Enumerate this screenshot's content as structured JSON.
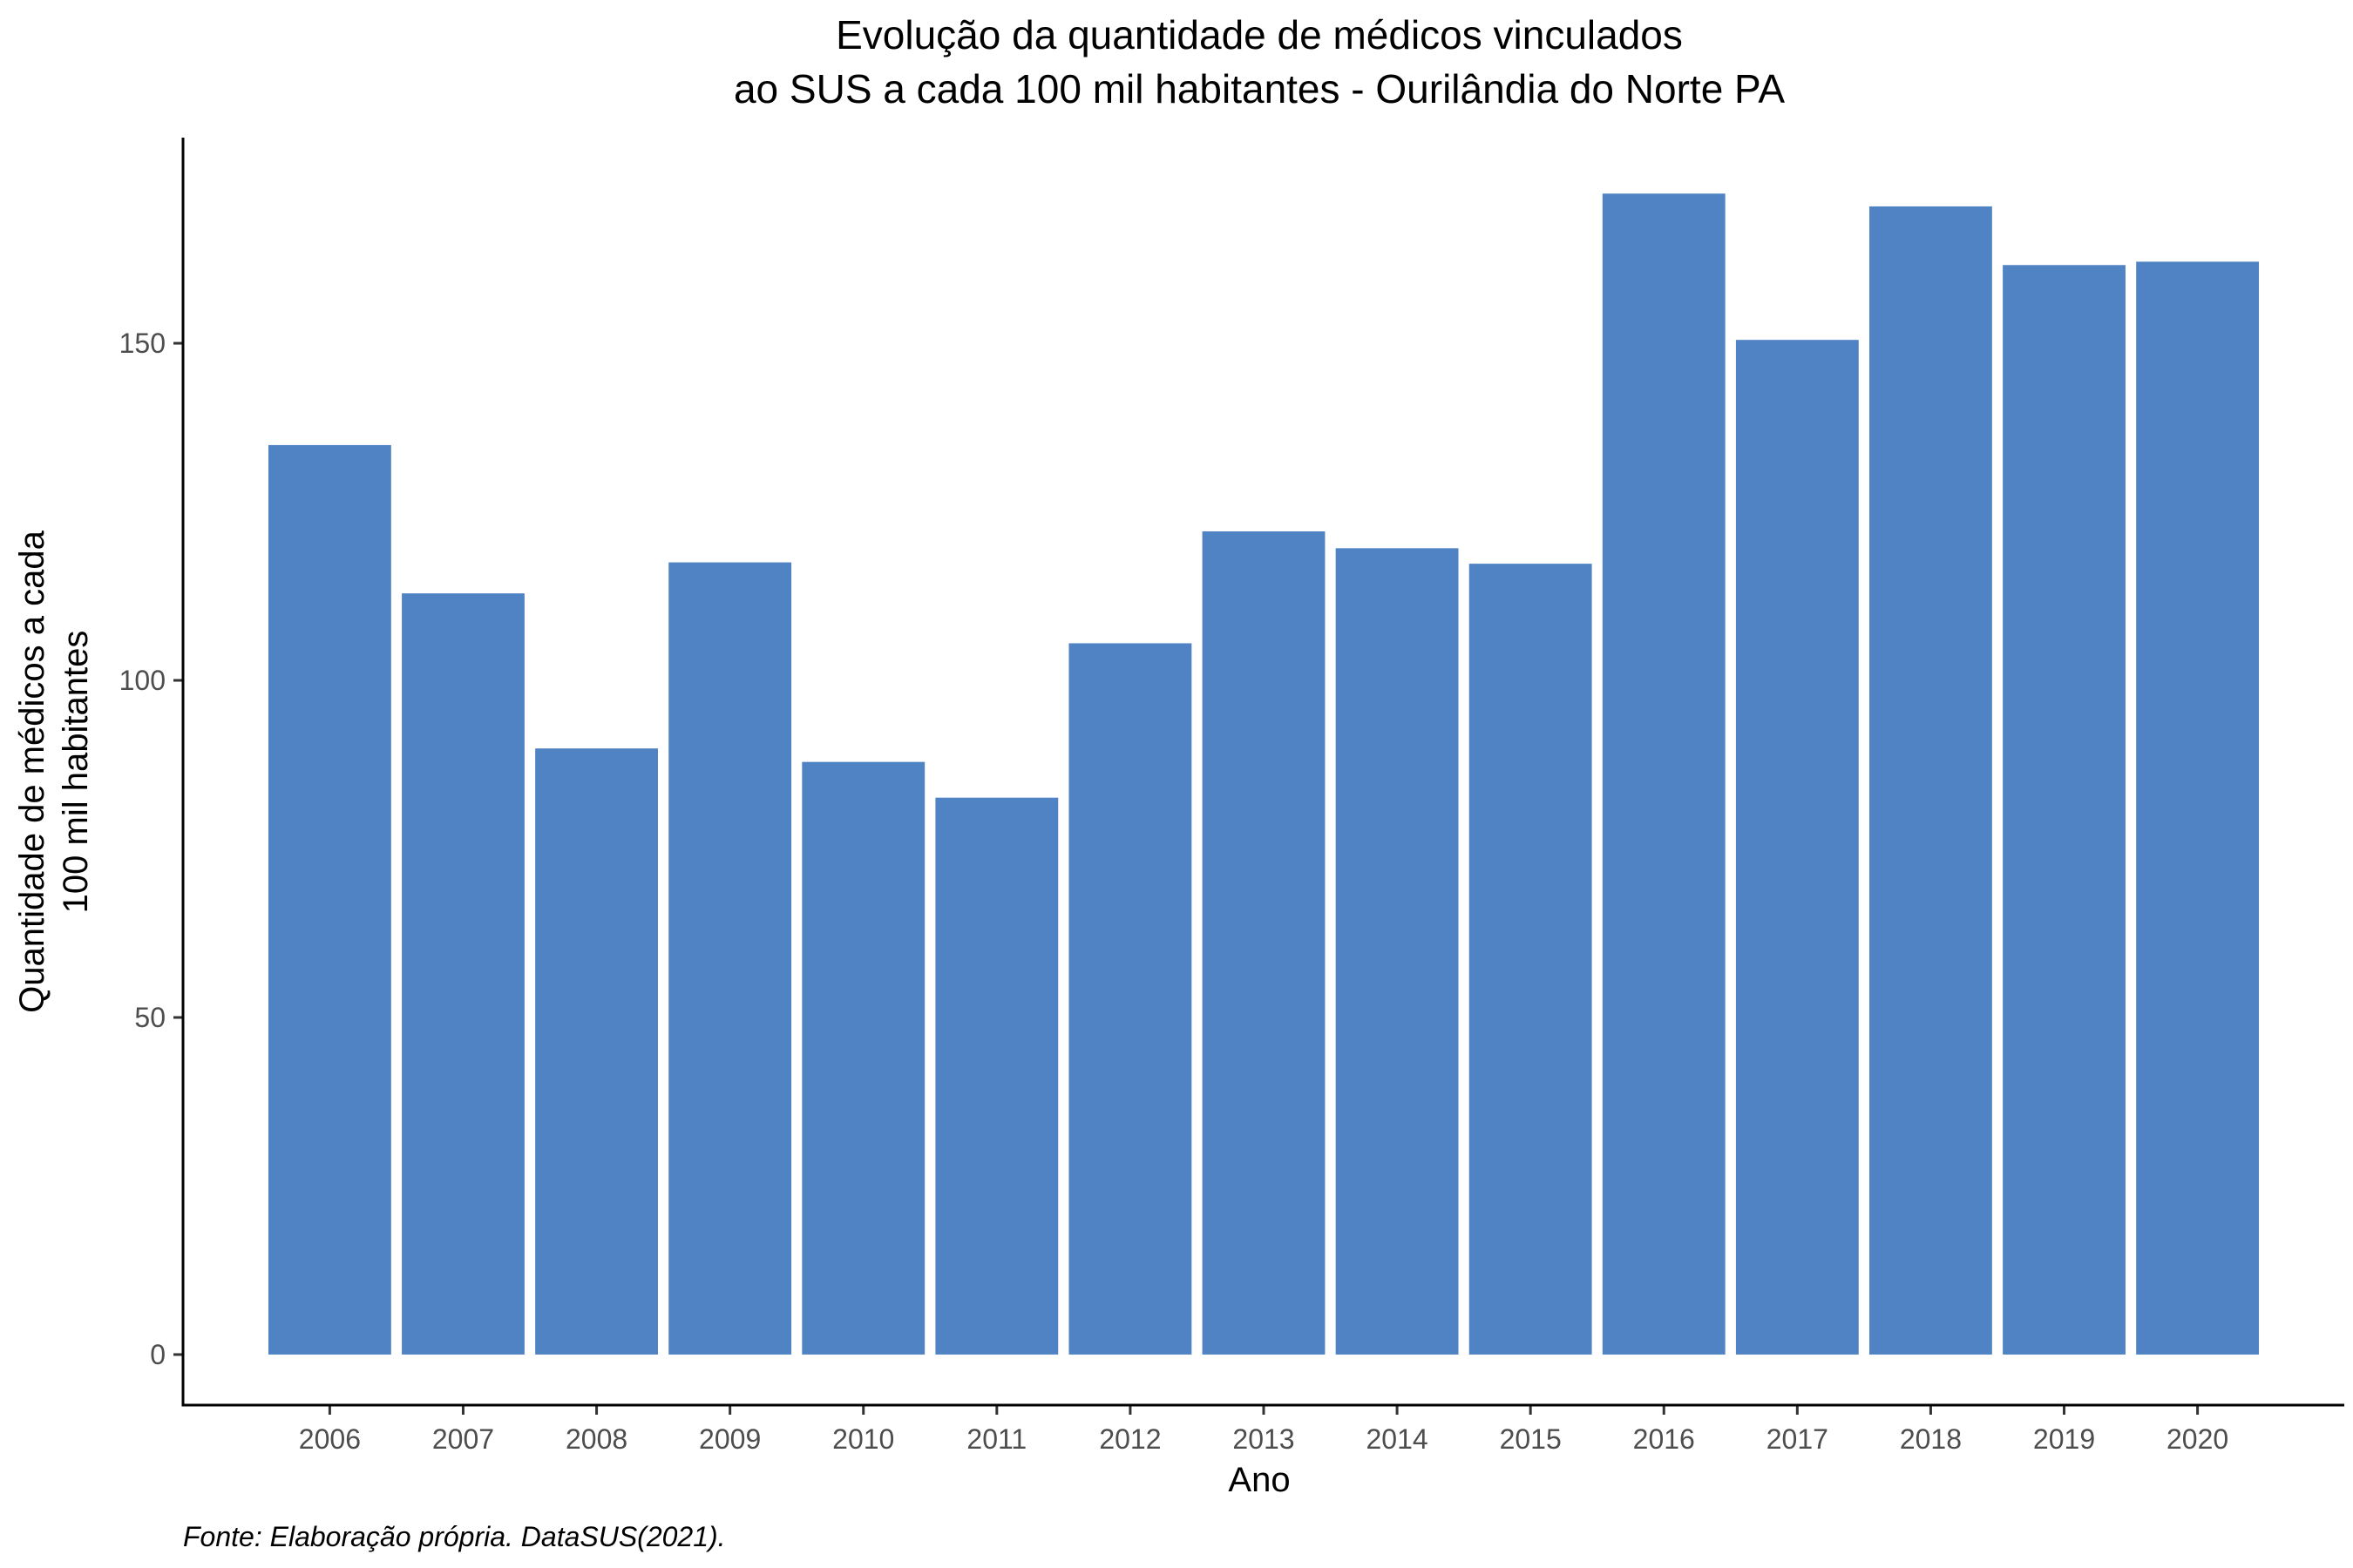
{
  "chart_data": {
    "type": "bar",
    "title_lines": [
      "Evolução da quantidade de médicos vinculados",
      "ao SUS a cada 100 mil habitantes - Ourilândia do Norte PA"
    ],
    "xlabel": "Ano",
    "ylabel_lines": [
      "Quantidade de médicos a cada",
      "100 mil habitantes"
    ],
    "caption": "Fonte: Elaboração própria. DataSUS(2021).",
    "categories": [
      "2006",
      "2007",
      "2008",
      "2009",
      "2010",
      "2011",
      "2012",
      "2013",
      "2014",
      "2015",
      "2016",
      "2017",
      "2018",
      "2019",
      "2020"
    ],
    "values": [
      134.9,
      112.9,
      89.9,
      117.5,
      87.9,
      82.6,
      105.5,
      122.1,
      119.6,
      117.3,
      172.2,
      150.5,
      170.3,
      161.6,
      162.1
    ],
    "yticks": [
      0,
      50,
      100,
      150
    ],
    "ylim": [
      -7.5,
      180.5
    ],
    "bar_color": "#4f83c4",
    "grid": false,
    "legend": "none"
  }
}
